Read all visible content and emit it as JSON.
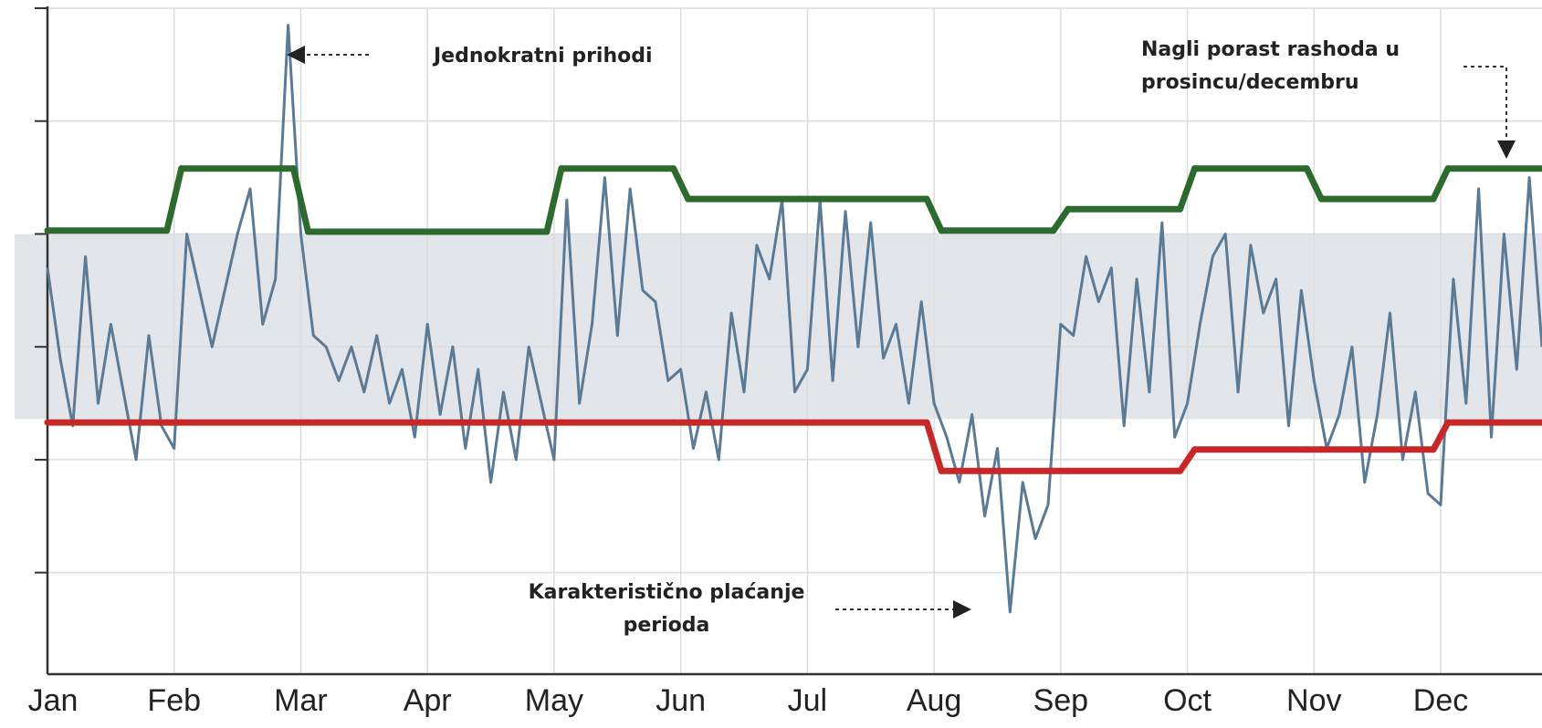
{
  "chart_data": {
    "type": "line",
    "xlim": [
      0,
      11.8
    ],
    "xticks": [
      {
        "value": 0,
        "label": "Jan"
      },
      {
        "value": 1,
        "label": "Feb"
      },
      {
        "value": 2,
        "label": "Mar"
      },
      {
        "value": 3,
        "label": "Apr"
      },
      {
        "value": 4,
        "label": "May"
      },
      {
        "value": 5,
        "label": "Jun"
      },
      {
        "value": 6,
        "label": "Jul"
      },
      {
        "value": 7,
        "label": "Aug"
      },
      {
        "value": 8,
        "label": "Sep"
      },
      {
        "value": 9,
        "label": "Oct"
      },
      {
        "value": 10,
        "label": "Nov"
      },
      {
        "value": 11,
        "label": "Dec"
      }
    ],
    "ylim": [
      -0.9,
      5
    ],
    "yticks": [
      0,
      1,
      2,
      3,
      4,
      5
    ],
    "grid": true,
    "band": [
      1.36,
      3.0
    ],
    "band_color": "#e2e6eb",
    "series": [
      {
        "color": "#5b7a95",
        "style": "line",
        "x": [
          0,
          0.1,
          0.2,
          0.3,
          0.4,
          0.5,
          0.6,
          0.7,
          0.8,
          0.9,
          1,
          1.1,
          1.2,
          1.3,
          1.4,
          1.5,
          1.6,
          1.7,
          1.8,
          1.9,
          2,
          2.1,
          2.2,
          2.3,
          2.4,
          2.5,
          2.6,
          2.7,
          2.8,
          2.9,
          3,
          3.1,
          3.2,
          3.3,
          3.4,
          3.5,
          3.6,
          3.7,
          3.8,
          3.9,
          4,
          4.1,
          4.2,
          4.3,
          4.4,
          4.5,
          4.6,
          4.7,
          4.8,
          4.9,
          5,
          5.1,
          5.2,
          5.3,
          5.4,
          5.5,
          5.6,
          5.7,
          5.8,
          5.9,
          6,
          6.1,
          6.2,
          6.3,
          6.4,
          6.5,
          6.6,
          6.7,
          6.8,
          6.9,
          7,
          7.1,
          7.2,
          7.3,
          7.4,
          7.5,
          7.6,
          7.7,
          7.8,
          7.9,
          8,
          8.1,
          8.2,
          8.3,
          8.4,
          8.5,
          8.6,
          8.7,
          8.8,
          8.9,
          9,
          9.1,
          9.2,
          9.3,
          9.4,
          9.5,
          9.6,
          9.7,
          9.8,
          9.9,
          10,
          10.1,
          10.2,
          10.3,
          10.4,
          10.5,
          10.6,
          10.7,
          10.8,
          10.9,
          11,
          11.1,
          11.2,
          11.3,
          11.4,
          11.5,
          11.6,
          11.7,
          11.8
        ],
        "values": [
          2.7,
          1.9,
          1.3,
          2.8,
          1.5,
          2.2,
          1.6,
          1.0,
          2.1,
          1.3,
          1.1,
          3.0,
          2.5,
          2.0,
          2.5,
          3.0,
          3.4,
          2.2,
          2.6,
          4.85,
          3.0,
          2.1,
          2.0,
          1.7,
          2.0,
          1.6,
          2.1,
          1.5,
          1.8,
          1.2,
          2.2,
          1.4,
          2.0,
          1.1,
          1.8,
          0.8,
          1.6,
          1.0,
          2.0,
          1.5,
          1.0,
          3.3,
          1.5,
          2.2,
          3.5,
          2.1,
          3.4,
          2.5,
          2.4,
          1.7,
          1.8,
          1.1,
          1.6,
          1.0,
          2.3,
          1.6,
          2.9,
          2.6,
          3.3,
          1.6,
          1.8,
          3.3,
          1.7,
          3.2,
          2.0,
          3.1,
          1.9,
          2.2,
          1.5,
          2.4,
          1.5,
          1.2,
          0.8,
          1.4,
          0.5,
          1.1,
          -0.35,
          0.8,
          0.3,
          0.6,
          2.2,
          2.1,
          2.8,
          2.4,
          2.7,
          1.3,
          2.6,
          1.6,
          3.1,
          1.2,
          1.5,
          2.2,
          2.8,
          3.0,
          1.6,
          2.9,
          2.3,
          2.6,
          1.3,
          2.5,
          1.7,
          1.1,
          1.4,
          2.0,
          0.8,
          1.4,
          2.3,
          1.0,
          1.6,
          0.7,
          0.6,
          2.6,
          1.5,
          3.4,
          1.2,
          3.0,
          1.8,
          3.5,
          2.0
        ]
      },
      {
        "color": "#2d6a2d",
        "style": "step",
        "x": [
          0,
          1,
          2,
          3,
          4,
          5,
          6,
          7,
          8,
          9,
          10,
          11
        ],
        "values": [
          3.03,
          3.58,
          3.02,
          3.02,
          3.58,
          3.31,
          3.31,
          3.03,
          3.22,
          3.58,
          3.31,
          3.58
        ]
      },
      {
        "color": "#c62828",
        "style": "step",
        "x": [
          0,
          1,
          2,
          3,
          4,
          5,
          6,
          7,
          8,
          9,
          10,
          11
        ],
        "values": [
          1.33,
          1.33,
          1.33,
          1.33,
          1.33,
          1.33,
          1.33,
          0.9,
          0.9,
          1.09,
          1.09,
          1.33
        ]
      }
    ],
    "annotations": [
      {
        "lines": [
          "Jednokratni prihodi"
        ]
      },
      {
        "lines": [
          "Nagli porast rashoda u",
          "prosincu/decembru"
        ]
      },
      {
        "lines": [
          "Karakteristično plaćanje",
          "perioda"
        ]
      }
    ]
  }
}
